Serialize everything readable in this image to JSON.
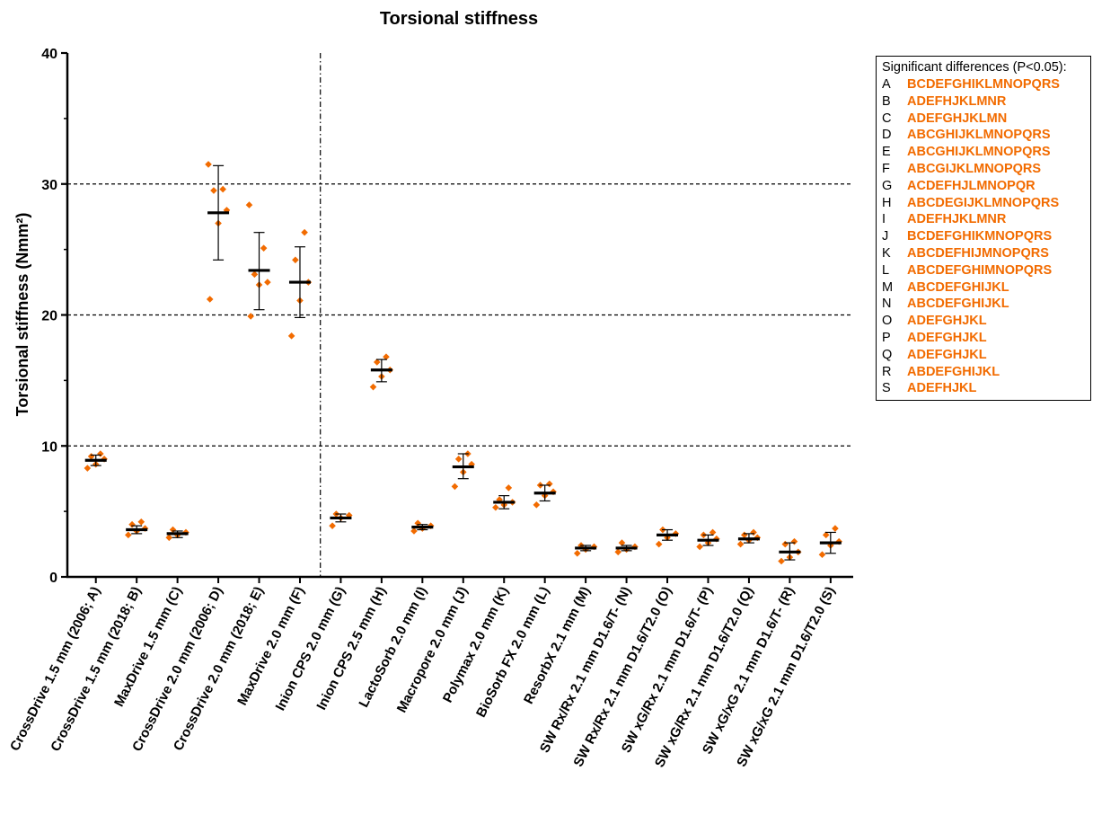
{
  "chart_data": {
    "type": "scatter",
    "title": "Torsional stiffness",
    "ylabel": "Torsional stiffness  (Nmm²)",
    "xlabel": "",
    "ylim": [
      0,
      40
    ],
    "yticks": [
      "0",
      "10",
      "20",
      "30",
      "40"
    ],
    "grid": "dashed horizontal lines at 10, 20, 30",
    "separator_after_index": 5,
    "point_color": "#f26b00",
    "summary_color": "#000000",
    "categories": [
      "CrossDrive 1.5 mm (2006; A)",
      "CrossDrive 1.5 mm (2018; B)",
      "MaxDrive 1.5 mm (C)",
      "CrossDrive 2.0 mm (2006; D)",
      "CrossDrive 2.0 mm (2018; E)",
      "MaxDrive 2.0 mm (F)",
      "Inion CPS 2.0 mm (G)",
      "Inion CPS 2.5 mm (H)",
      "LactoSorb 2.0 mm (I)",
      "Macropore 2.0 mm (J)",
      "Polymax 2.0 mm (K)",
      "BioSorb FX 2.0 mm (L)",
      "ResorbX 2.1 mm (M)",
      "SW Rx/Rx 2.1 mm D1.6/T- (N)",
      "SW Rx/Rx 2.1 mm D1.6/T2.0 (O)",
      "SW xG/Rx 2.1 mm D1.6/T- (P)",
      "SW xG/Rx 2.1 mm D1.6/T2.0 (Q)",
      "SW xG/xG 2.1 mm D1.6/T- (R)",
      "SW xG/xG 2.1 mm D1.6/T2.0 (S)"
    ],
    "series": [
      {
        "mean": 8.9,
        "sd_low": 8.5,
        "sd_high": 9.3,
        "points": [
          8.3,
          8.6,
          9.0,
          9.2,
          9.4
        ]
      },
      {
        "mean": 3.6,
        "sd_low": 3.3,
        "sd_high": 3.9,
        "points": [
          3.2,
          3.5,
          3.7,
          4.0,
          4.2
        ]
      },
      {
        "mean": 3.3,
        "sd_low": 3.0,
        "sd_high": 3.5,
        "points": [
          3.0,
          3.2,
          3.4,
          3.6
        ]
      },
      {
        "mean": 27.8,
        "sd_low": 24.2,
        "sd_high": 31.4,
        "points": [
          21.2,
          27.0,
          28.0,
          29.5,
          29.6,
          31.5
        ]
      },
      {
        "mean": 23.4,
        "sd_low": 20.4,
        "sd_high": 26.3,
        "points": [
          19.9,
          22.3,
          22.5,
          23.1,
          25.1,
          28.4
        ]
      },
      {
        "mean": 22.5,
        "sd_low": 19.8,
        "sd_high": 25.2,
        "points": [
          18.4,
          21.1,
          22.5,
          24.2,
          26.3
        ]
      },
      {
        "mean": 4.5,
        "sd_low": 4.2,
        "sd_high": 4.8,
        "points": [
          3.9,
          4.5,
          4.7,
          4.8
        ]
      },
      {
        "mean": 15.8,
        "sd_low": 14.9,
        "sd_high": 16.6,
        "points": [
          14.5,
          15.3,
          15.8,
          16.4,
          16.8
        ]
      },
      {
        "mean": 3.8,
        "sd_low": 3.6,
        "sd_high": 4.0,
        "points": [
          3.5,
          3.7,
          3.9,
          4.1
        ]
      },
      {
        "mean": 8.4,
        "sd_low": 7.5,
        "sd_high": 9.4,
        "points": [
          6.9,
          8.0,
          8.6,
          9.0,
          9.4
        ]
      },
      {
        "mean": 5.7,
        "sd_low": 5.2,
        "sd_high": 6.2,
        "points": [
          5.3,
          5.5,
          5.7,
          5.9,
          6.8
        ]
      },
      {
        "mean": 6.4,
        "sd_low": 5.8,
        "sd_high": 7.0,
        "points": [
          5.5,
          6.2,
          6.5,
          7.0,
          7.1
        ]
      },
      {
        "mean": 2.2,
        "sd_low": 2.0,
        "sd_high": 2.4,
        "points": [
          1.8,
          2.1,
          2.3,
          2.4
        ]
      },
      {
        "mean": 2.2,
        "sd_low": 2.0,
        "sd_high": 2.4,
        "points": [
          1.9,
          2.1,
          2.3,
          2.6
        ]
      },
      {
        "mean": 3.2,
        "sd_low": 2.8,
        "sd_high": 3.6,
        "points": [
          2.5,
          3.0,
          3.3,
          3.6
        ]
      },
      {
        "mean": 2.8,
        "sd_low": 2.4,
        "sd_high": 3.2,
        "points": [
          2.3,
          2.6,
          2.9,
          3.2,
          3.4
        ]
      },
      {
        "mean": 2.9,
        "sd_low": 2.6,
        "sd_high": 3.3,
        "points": [
          2.5,
          2.8,
          3.0,
          3.2,
          3.4
        ]
      },
      {
        "mean": 1.9,
        "sd_low": 1.3,
        "sd_high": 2.6,
        "points": [
          1.2,
          1.5,
          1.9,
          2.5,
          2.7
        ]
      },
      {
        "mean": 2.6,
        "sd_low": 1.8,
        "sd_high": 3.4,
        "points": [
          1.7,
          2.4,
          2.7,
          3.2,
          3.7
        ]
      }
    ]
  },
  "legend": {
    "heading": "Significant differences (P<0.05):",
    "rows": [
      {
        "key": "A",
        "value": "BCDEFGHIKLMNOPQRS"
      },
      {
        "key": "B",
        "value": "ADEFHJKLMNR"
      },
      {
        "key": "C",
        "value": "ADEFGHJKLMN"
      },
      {
        "key": "D",
        "value": "ABCGHIJKLMNOPQRS"
      },
      {
        "key": "E",
        "value": "ABCGHIJKLMNOPQRS"
      },
      {
        "key": "F",
        "value": "ABCGIJKLMNOPQRS"
      },
      {
        "key": "G",
        "value": "ACDEFHJLMNOPQR"
      },
      {
        "key": "H",
        "value": "ABCDEGIJKLMNOPQRS"
      },
      {
        "key": "I",
        "value": "ADEFHJKLMNR"
      },
      {
        "key": "J",
        "value": "BCDEFGHIKMNOPQRS"
      },
      {
        "key": "K",
        "value": "ABCDEFHIJMNOPQRS"
      },
      {
        "key": "L",
        "value": "ABCDEFGHIMNOPQRS"
      },
      {
        "key": "M",
        "value": "ABCDEFGHIJKL"
      },
      {
        "key": "N",
        "value": "ABCDEFGHIJKL"
      },
      {
        "key": "O",
        "value": "ADEFGHJKL"
      },
      {
        "key": "P",
        "value": "ADEFGHJKL"
      },
      {
        "key": "Q",
        "value": "ADEFGHJKL"
      },
      {
        "key": "R",
        "value": "ABDEFGHIJKL"
      },
      {
        "key": "S",
        "value": "ADEFHJKL"
      }
    ]
  }
}
